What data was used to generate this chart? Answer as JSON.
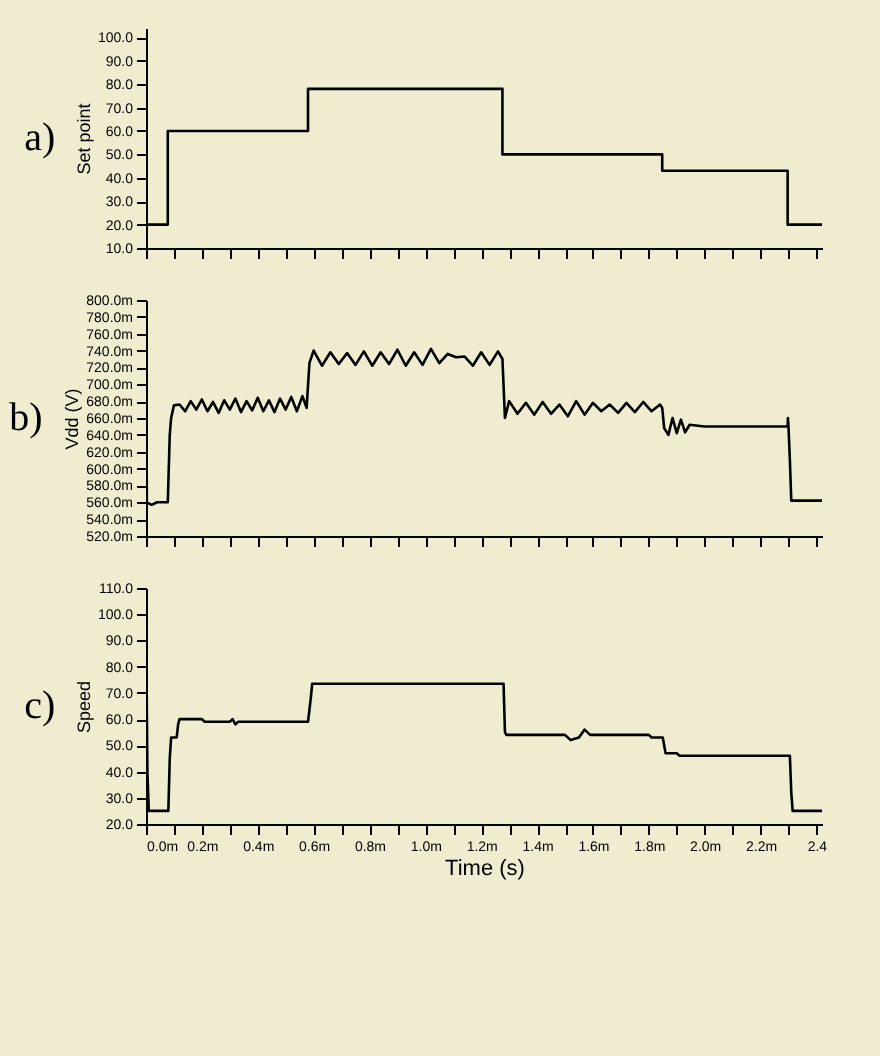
{
  "chart_data": [
    {
      "type": "line",
      "title": "a)",
      "ylabel": "Set point",
      "tick_labels": "y",
      "grid": false,
      "xlim": [
        0,
        2.42
      ],
      "ylim": [
        10,
        104
      ],
      "xticks": [
        {
          "value": 0,
          "label": null
        },
        {
          "value": 0.1,
          "label": null
        },
        {
          "value": 0.2,
          "label": null
        },
        {
          "value": 0.3,
          "label": null
        },
        {
          "value": 0.4,
          "label": null
        },
        {
          "value": 0.5,
          "label": null
        },
        {
          "value": 0.6,
          "label": null
        },
        {
          "value": 0.7,
          "label": null
        },
        {
          "value": 0.8,
          "label": null
        },
        {
          "value": 0.9,
          "label": null
        },
        {
          "value": 1,
          "label": null
        },
        {
          "value": 1.1,
          "label": null
        },
        {
          "value": 1.2,
          "label": null
        },
        {
          "value": 1.3,
          "label": null
        },
        {
          "value": 1.4,
          "label": null
        },
        {
          "value": 1.5,
          "label": null
        },
        {
          "value": 1.6,
          "label": null
        },
        {
          "value": 1.7,
          "label": null
        },
        {
          "value": 1.8,
          "label": null
        },
        {
          "value": 1.9,
          "label": null
        },
        {
          "value": 2,
          "label": null
        },
        {
          "value": 2.1,
          "label": null
        },
        {
          "value": 2.2,
          "label": null
        },
        {
          "value": 2.3,
          "label": null
        },
        {
          "value": 2.4,
          "label": null
        }
      ],
      "yticks": [
        {
          "value": 10,
          "label": "10.0"
        },
        {
          "value": 20,
          "label": "20.0"
        },
        {
          "value": 30,
          "label": "30.0"
        },
        {
          "value": 40,
          "label": "40.0"
        },
        {
          "value": 50,
          "label": "50.0"
        },
        {
          "value": 60,
          "label": "60.0"
        },
        {
          "value": 70,
          "label": "70.0"
        },
        {
          "value": 80,
          "label": "80.0"
        },
        {
          "value": 90,
          "label": "90.0"
        },
        {
          "value": 100,
          "label": "100.0"
        }
      ],
      "series": [
        {
          "color": "#000000",
          "x": [
            0,
            0.078,
            0.078,
            0.58,
            0.58,
            1.276,
            1.276,
            1.848,
            1.848,
            2.297,
            2.297,
            2.42
          ],
          "values": [
            20,
            20,
            60,
            60,
            78,
            78,
            50,
            50,
            43,
            43,
            20,
            20
          ]
        }
      ]
    },
    {
      "type": "line",
      "title": "b)",
      "ylabel": "Vdd (V)",
      "tick_labels": "y",
      "grid": false,
      "xlim": [
        0,
        2.42
      ],
      "ylim": [
        520,
        800
      ],
      "xticks": [
        {
          "value": 0,
          "label": null
        },
        {
          "value": 0.1,
          "label": null
        },
        {
          "value": 0.2,
          "label": null
        },
        {
          "value": 0.3,
          "label": null
        },
        {
          "value": 0.4,
          "label": null
        },
        {
          "value": 0.5,
          "label": null
        },
        {
          "value": 0.6,
          "label": null
        },
        {
          "value": 0.7,
          "label": null
        },
        {
          "value": 0.8,
          "label": null
        },
        {
          "value": 0.9,
          "label": null
        },
        {
          "value": 1,
          "label": null
        },
        {
          "value": 1.1,
          "label": null
        },
        {
          "value": 1.2,
          "label": null
        },
        {
          "value": 1.3,
          "label": null
        },
        {
          "value": 1.4,
          "label": null
        },
        {
          "value": 1.5,
          "label": null
        },
        {
          "value": 1.6,
          "label": null
        },
        {
          "value": 1.7,
          "label": null
        },
        {
          "value": 1.8,
          "label": null
        },
        {
          "value": 1.9,
          "label": null
        },
        {
          "value": 2,
          "label": null
        },
        {
          "value": 2.1,
          "label": null
        },
        {
          "value": 2.2,
          "label": null
        },
        {
          "value": 2.3,
          "label": null
        },
        {
          "value": 2.4,
          "label": null
        }
      ],
      "yticks": [
        {
          "value": 520,
          "label": "520.0m"
        },
        {
          "value": 540,
          "label": "540.0m"
        },
        {
          "value": 560,
          "label": "560.0m"
        },
        {
          "value": 580,
          "label": "580.0m"
        },
        {
          "value": 600,
          "label": "600.0m"
        },
        {
          "value": 620,
          "label": "620.0m"
        },
        {
          "value": 640,
          "label": "640.0m"
        },
        {
          "value": 660,
          "label": "660.0m"
        },
        {
          "value": 680,
          "label": "680.0m"
        },
        {
          "value": 700,
          "label": "700.0m"
        },
        {
          "value": 720,
          "label": "720.0m"
        },
        {
          "value": 740,
          "label": "740.0m"
        },
        {
          "value": 760,
          "label": "760.0m"
        },
        {
          "value": 780,
          "label": "780.0m"
        },
        {
          "value": 800,
          "label": "800.0m"
        }
      ],
      "series": [
        {
          "color": "#000000",
          "x": [
            0,
            0.003,
            0.02,
            0.04,
            0.078,
            0.085,
            0.09,
            0.1,
            0.12,
            0.14,
            0.16,
            0.18,
            0.2,
            0.22,
            0.24,
            0.26,
            0.28,
            0.3,
            0.32,
            0.34,
            0.36,
            0.38,
            0.4,
            0.42,
            0.44,
            0.46,
            0.48,
            0.5,
            0.52,
            0.54,
            0.56,
            0.575,
            0.585,
            0.6,
            0.63,
            0.66,
            0.69,
            0.72,
            0.75,
            0.78,
            0.81,
            0.84,
            0.87,
            0.9,
            0.93,
            0.96,
            0.99,
            1.02,
            1.05,
            1.08,
            1.11,
            1.14,
            1.17,
            1.2,
            1.23,
            1.26,
            1.276,
            1.285,
            1.3,
            1.33,
            1.36,
            1.39,
            1.42,
            1.45,
            1.48,
            1.51,
            1.54,
            1.57,
            1.6,
            1.63,
            1.66,
            1.69,
            1.72,
            1.75,
            1.78,
            1.81,
            1.84,
            1.848,
            1.855,
            1.87,
            1.885,
            1.9,
            1.915,
            1.93,
            1.946,
            2.0,
            2.297,
            2.298,
            2.3,
            2.305,
            2.31,
            2.42
          ],
          "values": [
            790,
            560,
            557,
            560,
            560,
            640,
            660,
            675,
            676,
            668,
            680,
            670,
            682,
            668,
            679,
            666,
            681,
            670,
            683,
            667,
            680,
            669,
            684,
            668,
            681,
            667,
            683,
            670,
            685,
            668,
            686,
            672,
            725,
            740,
            722,
            738,
            724,
            737,
            723,
            739,
            722,
            738,
            724,
            741,
            722,
            738,
            723,
            742,
            725,
            736,
            732,
            733,
            722,
            738,
            723,
            739,
            730,
            660,
            680,
            665,
            678,
            664,
            679,
            665,
            676,
            662,
            680,
            664,
            678,
            668,
            676,
            666,
            678,
            667,
            679,
            668,
            676,
            672,
            648,
            640,
            660,
            642,
            658,
            643,
            652,
            650,
            650,
            660,
            650,
            610,
            562,
            562
          ]
        }
      ]
    },
    {
      "type": "line",
      "title": "c)",
      "ylabel": "Speed",
      "xlabel": "Time (s)",
      "grid": false,
      "xlim": [
        0,
        2.42
      ],
      "ylim": [
        20,
        110
      ],
      "xticks": [
        {
          "value": 0,
          "label": "0.0m"
        },
        {
          "value": 0.1,
          "label": null
        },
        {
          "value": 0.2,
          "label": "0.2m"
        },
        {
          "value": 0.3,
          "label": null
        },
        {
          "value": 0.4,
          "label": "0.4m"
        },
        {
          "value": 0.5,
          "label": null
        },
        {
          "value": 0.6,
          "label": "0.6m"
        },
        {
          "value": 0.7,
          "label": null
        },
        {
          "value": 0.8,
          "label": "0.8m"
        },
        {
          "value": 0.9,
          "label": null
        },
        {
          "value": 1,
          "label": "1.0m"
        },
        {
          "value": 1.1,
          "label": null
        },
        {
          "value": 1.2,
          "label": "1.2m"
        },
        {
          "value": 1.3,
          "label": null
        },
        {
          "value": 1.4,
          "label": "1.4m"
        },
        {
          "value": 1.5,
          "label": null
        },
        {
          "value": 1.6,
          "label": "1.6m"
        },
        {
          "value": 1.7,
          "label": null
        },
        {
          "value": 1.8,
          "label": "1.8m"
        },
        {
          "value": 1.9,
          "label": null
        },
        {
          "value": 2,
          "label": "2.0m"
        },
        {
          "value": 2.1,
          "label": null
        },
        {
          "value": 2.2,
          "label": "2.2m"
        },
        {
          "value": 2.3,
          "label": null
        },
        2.4
      ],
      "yticks": [
        {
          "value": 20,
          "label": "20.0"
        },
        {
          "value": 30,
          "label": "30.0"
        },
        {
          "value": 40,
          "label": "40.0"
        },
        {
          "value": 50,
          "label": "50.0"
        },
        {
          "value": 60,
          "label": "60.0"
        },
        {
          "value": 70,
          "label": "70.0"
        },
        {
          "value": 80,
          "label": "80.0"
        },
        {
          "value": 90,
          "label": "90.0"
        },
        {
          "value": 100,
          "label": "100.0"
        },
        {
          "value": 110,
          "label": "110.0"
        }
      ],
      "series": [
        {
          "color": "#000000",
          "x": [
            0,
            0.005,
            0.01,
            0.08,
            0.085,
            0.09,
            0.11,
            0.115,
            0.12,
            0.2,
            0.21,
            0.3,
            0.31,
            0.32,
            0.33,
            0.58,
            0.59,
            0.595,
            1.28,
            1.285,
            1.29,
            1.5,
            1.52,
            1.55,
            1.57,
            1.59,
            1.8,
            1.81,
            1.85,
            1.86,
            1.9,
            1.91,
            2.305,
            2.31,
            2.315,
            2.42
          ],
          "values": [
            100,
            40,
            25,
            25,
            45,
            53,
            53,
            58,
            60,
            60,
            59,
            59,
            60,
            58,
            59,
            59,
            68,
            73.5,
            73.5,
            55,
            54,
            54,
            52,
            53,
            56,
            54,
            54,
            53,
            53,
            47,
            47,
            46,
            46,
            32,
            25,
            25
          ]
        }
      ]
    }
  ]
}
